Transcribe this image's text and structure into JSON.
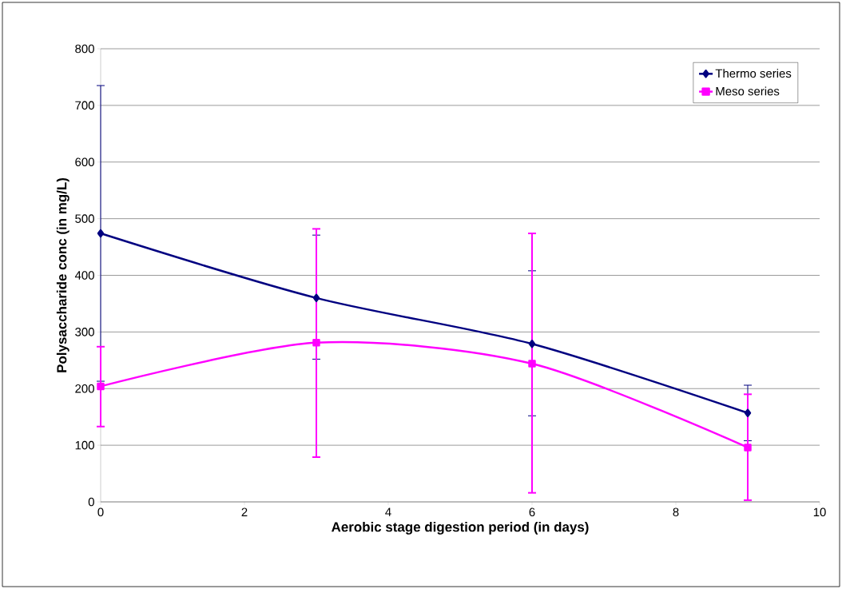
{
  "chart_data": {
    "type": "line",
    "xlabel": "Aerobic stage digestion period (in days)",
    "ylabel": "Polysaccharide conc (in mg/L)",
    "x": [
      0,
      3,
      6,
      9
    ],
    "series": [
      {
        "name": "Thermo series",
        "color": "#000080",
        "marker": "diamond",
        "values": [
          474,
          360,
          279,
          157
        ],
        "errors": [
          [
            213,
            735
          ],
          [
            252,
            471
          ],
          [
            152,
            408
          ],
          [
            108,
            206
          ]
        ]
      },
      {
        "name": "Meso series",
        "color": "#ff00ff",
        "marker": "square",
        "values": [
          204,
          281,
          244,
          96
        ],
        "errors": [
          [
            133,
            274
          ],
          [
            79,
            482
          ],
          [
            16,
            474
          ],
          [
            3,
            190
          ]
        ]
      }
    ],
    "xlim": [
      0,
      10
    ],
    "xticks": [
      0,
      2,
      4,
      6,
      8,
      10
    ],
    "ylim": [
      0,
      800
    ],
    "yticks": [
      0,
      100,
      200,
      300,
      400,
      500,
      600,
      700,
      800
    ],
    "grid": "y",
    "legend": "top right",
    "line_style": "solid"
  }
}
